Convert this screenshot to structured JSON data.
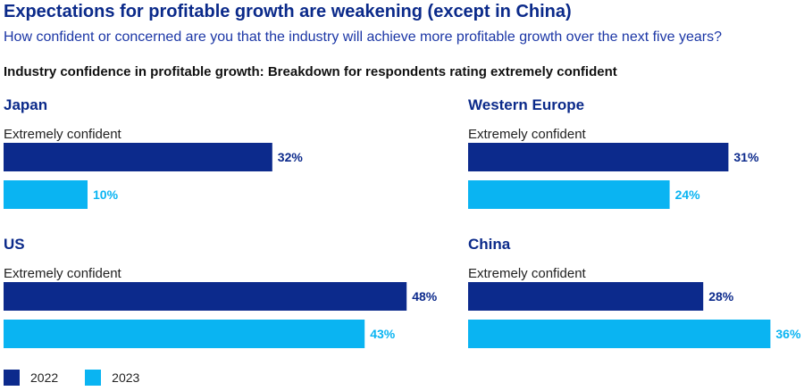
{
  "header": {
    "title": "Expectations for profitable growth are weakening (except in China)",
    "subtitle": "How confident or concerned are you that the industry will achieve more profitable growth over the next five years?",
    "section_title": "Industry confidence in profitable growth: Breakdown for respondents rating extremely confident"
  },
  "colors": {
    "y2022": "#0c2a8c",
    "y2023": "#0ab4f2",
    "region_title": "#0b2a8a"
  },
  "legend": [
    {
      "label": "2022",
      "color": "#0c2a8c"
    },
    {
      "label": "2023",
      "color": "#0ab4f2"
    }
  ],
  "chart_data": [
    {
      "type": "bar",
      "title": "Japan",
      "categories": [
        "Extremely confident"
      ],
      "series": [
        {
          "name": "2022",
          "values": [
            32
          ]
        },
        {
          "name": "2023",
          "values": [
            10
          ]
        }
      ],
      "unit": "%"
    },
    {
      "type": "bar",
      "title": "Western Europe",
      "categories": [
        "Extremely confident"
      ],
      "series": [
        {
          "name": "2022",
          "values": [
            31
          ]
        },
        {
          "name": "2023",
          "values": [
            24
          ]
        }
      ],
      "unit": "%"
    },
    {
      "type": "bar",
      "title": "US",
      "categories": [
        "Extremely confident"
      ],
      "series": [
        {
          "name": "2022",
          "values": [
            48
          ]
        },
        {
          "name": "2023",
          "values": [
            43
          ]
        }
      ],
      "unit": "%"
    },
    {
      "type": "bar",
      "title": "China",
      "categories": [
        "Extremely confident"
      ],
      "series": [
        {
          "name": "2022",
          "values": [
            28
          ]
        },
        {
          "name": "2023",
          "values": [
            36
          ]
        }
      ],
      "unit": "%"
    }
  ]
}
